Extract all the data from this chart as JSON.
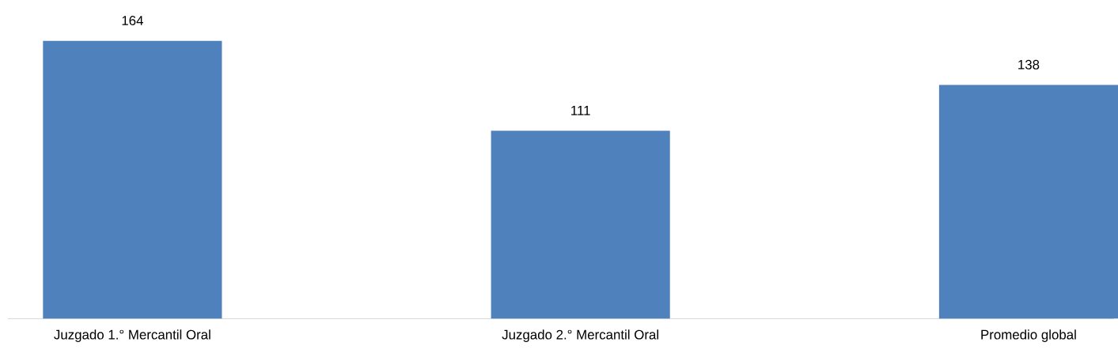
{
  "chart_data": {
    "type": "bar",
    "categories": [
      "Juzgado 1.° Mercantil Oral",
      "Juzgado 2.° Mercantil Oral",
      "Promedio global"
    ],
    "values": [
      164,
      111,
      138
    ],
    "color": "#4f81bd",
    "data_labels": true
  }
}
